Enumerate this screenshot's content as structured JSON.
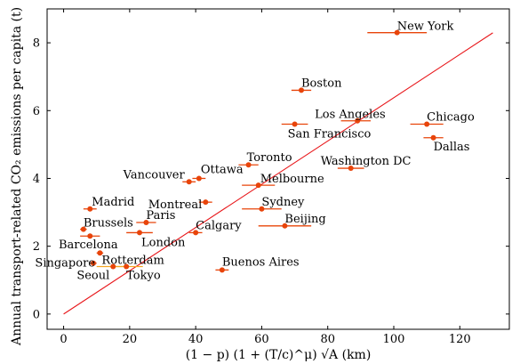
{
  "chart_data": {
    "type": "scatter",
    "xlabel": "(1 − p) (1 + (T/c)^μ) √A (km)",
    "ylabel": "Annual transport-related CO₂ emissions per capita (t)",
    "xlim": [
      -5,
      135
    ],
    "ylim": [
      -0.45,
      9.0
    ],
    "x_ticks": [
      0,
      20,
      40,
      60,
      80,
      100,
      120
    ],
    "y_ticks": [
      0,
      2,
      4,
      6,
      8
    ],
    "grid": false,
    "colors": {
      "point": "#e8440a",
      "errorbar": "#e8440a",
      "errorbar_alt": "#f5a623",
      "fit_line": "#e8161a"
    },
    "fit_line": {
      "slope": 0.0638,
      "x": [
        0,
        130
      ]
    },
    "points": [
      {
        "name": "New York",
        "x": 101,
        "y": 8.3,
        "xerr": [
          92,
          110
        ]
      },
      {
        "name": "Boston",
        "x": 72,
        "y": 6.6,
        "xerr": [
          69,
          75
        ]
      },
      {
        "name": "Los Angeles",
        "x": 89,
        "y": 5.7,
        "xerr": [
          84,
          93
        ]
      },
      {
        "name": "San Francisco",
        "x": 70,
        "y": 5.6,
        "xerr": [
          66,
          74
        ]
      },
      {
        "name": "Chicago",
        "x": 110,
        "y": 5.6,
        "xerr": [
          105,
          115
        ]
      },
      {
        "name": "Dallas",
        "x": 112,
        "y": 5.2,
        "xerr": [
          109,
          115
        ]
      },
      {
        "name": "Washington DC",
        "x": 87,
        "y": 4.3,
        "xerr": [
          83,
          91
        ]
      },
      {
        "name": "Toronto",
        "x": 56,
        "y": 4.4,
        "xerr": [
          53,
          59
        ]
      },
      {
        "name": "Vancouver",
        "x": 38,
        "y": 3.9,
        "xerr": [
          36,
          40
        ]
      },
      {
        "name": "Ottawa",
        "x": 41,
        "y": 4.0,
        "xerr": [
          39,
          43
        ]
      },
      {
        "name": "Melbourne",
        "x": 59,
        "y": 3.8,
        "xerr": [
          54,
          64
        ]
      },
      {
        "name": "Montreal",
        "x": 43,
        "y": 3.3,
        "xerr": [
          41,
          45
        ]
      },
      {
        "name": "Madrid",
        "x": 8,
        "y": 3.1,
        "xerr": [
          6,
          10
        ]
      },
      {
        "name": "Sydney",
        "x": 60,
        "y": 3.1,
        "xerr": [
          54,
          66
        ]
      },
      {
        "name": "Paris",
        "x": 25,
        "y": 2.7,
        "xerr": [
          22,
          28
        ]
      },
      {
        "name": "Beijing",
        "x": 67,
        "y": 2.6,
        "xerr": [
          59,
          75
        ]
      },
      {
        "name": "Brussels",
        "x": 6,
        "y": 2.5,
        "xerr": [
          5,
          7
        ]
      },
      {
        "name": "London",
        "x": 23,
        "y": 2.4,
        "xerr": [
          19,
          27
        ]
      },
      {
        "name": "Calgary",
        "x": 40,
        "y": 2.4,
        "xerr": [
          38,
          42
        ]
      },
      {
        "name": "Barcelona",
        "x": 8,
        "y": 2.3,
        "xerr": [
          5,
          11
        ]
      },
      {
        "name": "Rotterdam",
        "x": 11,
        "y": 1.8,
        "xerr": [
          10,
          12
        ]
      },
      {
        "name": "Singapore",
        "x": 9,
        "y": 1.5,
        "xerr": [
          8,
          10
        ]
      },
      {
        "name": "Seoul",
        "x": 15,
        "y": 1.4,
        "xerr": [
          10,
          20
        ],
        "alt": true
      },
      {
        "name": "Tokyo",
        "x": 19,
        "y": 1.4,
        "xerr": [
          14,
          24
        ],
        "alt": true
      },
      {
        "name": "Buenos Aires",
        "x": 48,
        "y": 1.3,
        "xerr": [
          46,
          50
        ]
      }
    ]
  }
}
